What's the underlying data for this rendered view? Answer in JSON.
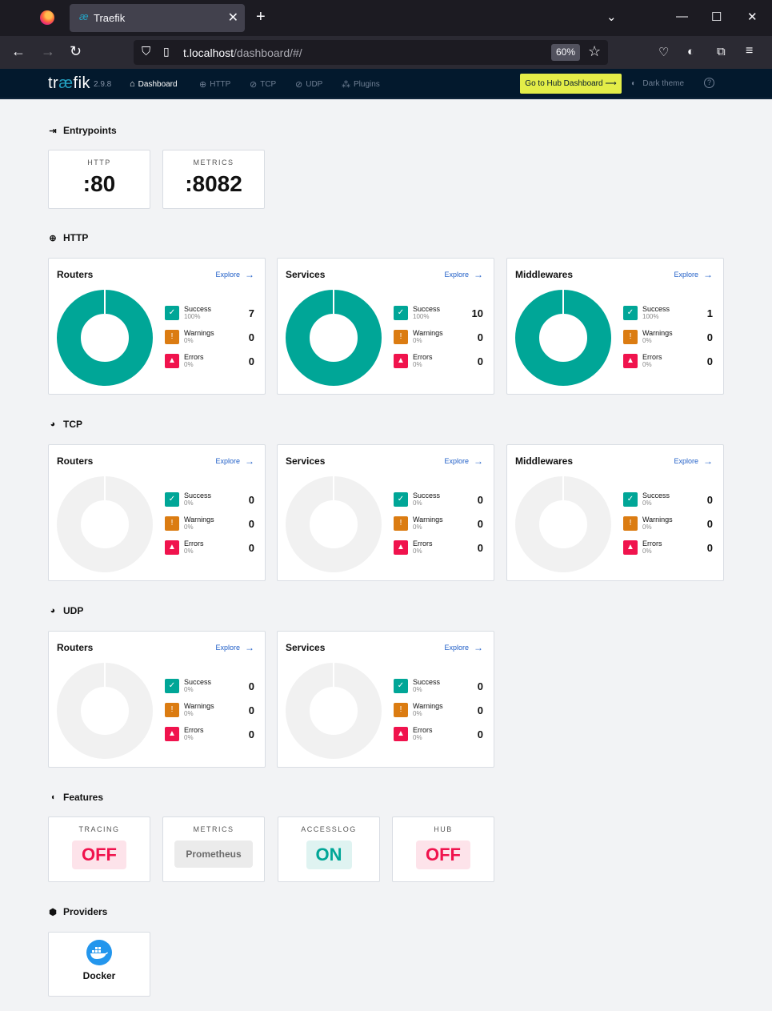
{
  "browser": {
    "tab_title": "Traefik",
    "url_host": "t.localhost",
    "url_path": "/dashboard/#/",
    "zoom": "60%"
  },
  "header": {
    "logo_prefix": "tr",
    "logo_ae": "æ",
    "logo_suffix": "fik",
    "version": "2.9.8",
    "nav": [
      {
        "label": "Dashboard",
        "icon": "home-icon"
      },
      {
        "label": "HTTP",
        "icon": "globe-icon"
      },
      {
        "label": "TCP",
        "icon": "tcp-icon"
      },
      {
        "label": "UDP",
        "icon": "udp-icon"
      },
      {
        "label": "Plugins",
        "icon": "plugins-icon"
      }
    ],
    "hub_button": "Go to Hub Dashboard ⟶",
    "dark_theme": "Dark theme",
    "help": "?"
  },
  "entrypoints": {
    "title": "Entrypoints",
    "items": [
      {
        "label": "HTTP",
        "value": ":80"
      },
      {
        "label": "METRICS",
        "value": ":8082"
      }
    ]
  },
  "http": {
    "title": "HTTP",
    "cards": [
      {
        "title": "Routers",
        "explore": "Explore",
        "success": {
          "label": "Success",
          "pct": "100%",
          "count": "7"
        },
        "warnings": {
          "label": "Warnings",
          "pct": "0%",
          "count": "0"
        },
        "errors": {
          "label": "Errors",
          "pct": "0%",
          "count": "0"
        }
      },
      {
        "title": "Services",
        "explore": "Explore",
        "success": {
          "label": "Success",
          "pct": "100%",
          "count": "10"
        },
        "warnings": {
          "label": "Warnings",
          "pct": "0%",
          "count": "0"
        },
        "errors": {
          "label": "Errors",
          "pct": "0%",
          "count": "0"
        }
      },
      {
        "title": "Middlewares",
        "explore": "Explore",
        "success": {
          "label": "Success",
          "pct": "100%",
          "count": "1"
        },
        "warnings": {
          "label": "Warnings",
          "pct": "0%",
          "count": "0"
        },
        "errors": {
          "label": "Errors",
          "pct": "0%",
          "count": "0"
        }
      }
    ]
  },
  "tcp": {
    "title": "TCP",
    "cards": [
      {
        "title": "Routers",
        "explore": "Explore",
        "success": {
          "label": "Success",
          "pct": "0%",
          "count": "0"
        },
        "warnings": {
          "label": "Warnings",
          "pct": "0%",
          "count": "0"
        },
        "errors": {
          "label": "Errors",
          "pct": "0%",
          "count": "0"
        }
      },
      {
        "title": "Services",
        "explore": "Explore",
        "success": {
          "label": "Success",
          "pct": "0%",
          "count": "0"
        },
        "warnings": {
          "label": "Warnings",
          "pct": "0%",
          "count": "0"
        },
        "errors": {
          "label": "Errors",
          "pct": "0%",
          "count": "0"
        }
      },
      {
        "title": "Middlewares",
        "explore": "Explore",
        "success": {
          "label": "Success",
          "pct": "0%",
          "count": "0"
        },
        "warnings": {
          "label": "Warnings",
          "pct": "0%",
          "count": "0"
        },
        "errors": {
          "label": "Errors",
          "pct": "0%",
          "count": "0"
        }
      }
    ]
  },
  "udp": {
    "title": "UDP",
    "cards": [
      {
        "title": "Routers",
        "explore": "Explore",
        "success": {
          "label": "Success",
          "pct": "0%",
          "count": "0"
        },
        "warnings": {
          "label": "Warnings",
          "pct": "0%",
          "count": "0"
        },
        "errors": {
          "label": "Errors",
          "pct": "0%",
          "count": "0"
        }
      },
      {
        "title": "Services",
        "explore": "Explore",
        "success": {
          "label": "Success",
          "pct": "0%",
          "count": "0"
        },
        "warnings": {
          "label": "Warnings",
          "pct": "0%",
          "count": "0"
        },
        "errors": {
          "label": "Errors",
          "pct": "0%",
          "count": "0"
        }
      }
    ]
  },
  "features": {
    "title": "Features",
    "items": [
      {
        "label": "TRACING",
        "value": "OFF"
      },
      {
        "label": "METRICS",
        "value": "Prometheus"
      },
      {
        "label": "ACCESSLOG",
        "value": "ON"
      },
      {
        "label": "HUB",
        "value": "OFF"
      }
    ]
  },
  "providers": {
    "title": "Providers",
    "items": [
      {
        "name": "Docker",
        "icon": "docker-icon"
      }
    ]
  },
  "colors": {
    "success": "#00a697",
    "warning": "#db7c12",
    "error": "#f0134d",
    "empty": "#f1f1f1",
    "header_bg": "#03192d",
    "hub_button": "#e3ed48"
  }
}
